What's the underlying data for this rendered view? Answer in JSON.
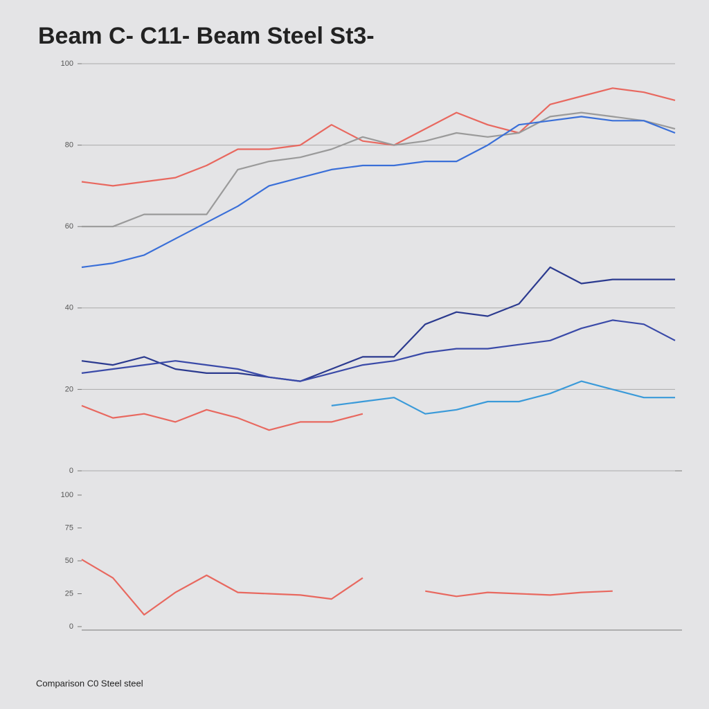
{
  "title": "Beam C-  C11-  Beam  Steel  St3-",
  "footer": "Comparison C0 Steel steel",
  "chart_data": [
    {
      "type": "line",
      "x": [
        0,
        1,
        2,
        3,
        4,
        5,
        6,
        7,
        8,
        9,
        10,
        11,
        12,
        13,
        14,
        15,
        16,
        17,
        18,
        19
      ],
      "xlim": [
        0,
        19
      ],
      "ylim": [
        0,
        100
      ],
      "yticks": [
        0,
        20,
        40,
        60,
        80,
        100
      ],
      "grid": true,
      "series": [
        {
          "color": "#e8685f",
          "values": [
            71,
            70,
            71,
            72,
            75,
            79,
            79,
            80,
            85,
            81,
            80,
            84,
            88,
            85,
            83,
            90,
            92,
            94,
            93,
            91
          ]
        },
        {
          "color": "#9a9a9a",
          "values": [
            60,
            60,
            63,
            63,
            63,
            74,
            76,
            77,
            79,
            82,
            80,
            81,
            83,
            82,
            83,
            87,
            88,
            87,
            86,
            84
          ]
        },
        {
          "color": "#3a6fd8",
          "values": [
            50,
            51,
            53,
            57,
            61,
            65,
            70,
            72,
            74,
            75,
            75,
            76,
            76,
            80,
            85,
            86,
            87,
            86,
            86,
            83
          ]
        },
        {
          "color": "#2b3a8f",
          "values": [
            27,
            26,
            28,
            25,
            24,
            24,
            23,
            22,
            25,
            28,
            28,
            36,
            39,
            38,
            41,
            50,
            46,
            47,
            47,
            47
          ]
        },
        {
          "color": "#3a4aa8",
          "values": [
            24,
            25,
            26,
            27,
            26,
            25,
            23,
            22,
            24,
            26,
            27,
            29,
            30,
            30,
            31,
            32,
            35,
            37,
            36,
            32
          ]
        },
        {
          "color": "#3a9ad9",
          "values": [
            null,
            null,
            null,
            null,
            null,
            null,
            null,
            null,
            16,
            17,
            18,
            14,
            15,
            17,
            17,
            19,
            22,
            20,
            18,
            18
          ]
        },
        {
          "color": "#e8685f",
          "values": [
            16,
            13,
            14,
            12,
            15,
            13,
            10,
            12,
            12,
            14,
            null,
            null,
            null,
            null,
            null,
            null,
            null,
            null,
            null,
            null
          ]
        }
      ]
    },
    {
      "type": "line",
      "x": [
        0,
        1,
        2,
        3,
        4,
        5,
        6,
        7,
        8,
        9,
        10,
        11,
        12,
        13,
        14,
        15,
        16,
        17,
        18,
        19
      ],
      "xlim": [
        0,
        19
      ],
      "ylim": [
        0,
        100
      ],
      "yticks": [
        0,
        25,
        50,
        75,
        100
      ],
      "grid": false,
      "series": [
        {
          "color": "#e8685f",
          "values": [
            51,
            37,
            9,
            26,
            39,
            26,
            25,
            24,
            21,
            37,
            null,
            27,
            23,
            26,
            25,
            24,
            26,
            27,
            null,
            null
          ]
        }
      ]
    }
  ]
}
